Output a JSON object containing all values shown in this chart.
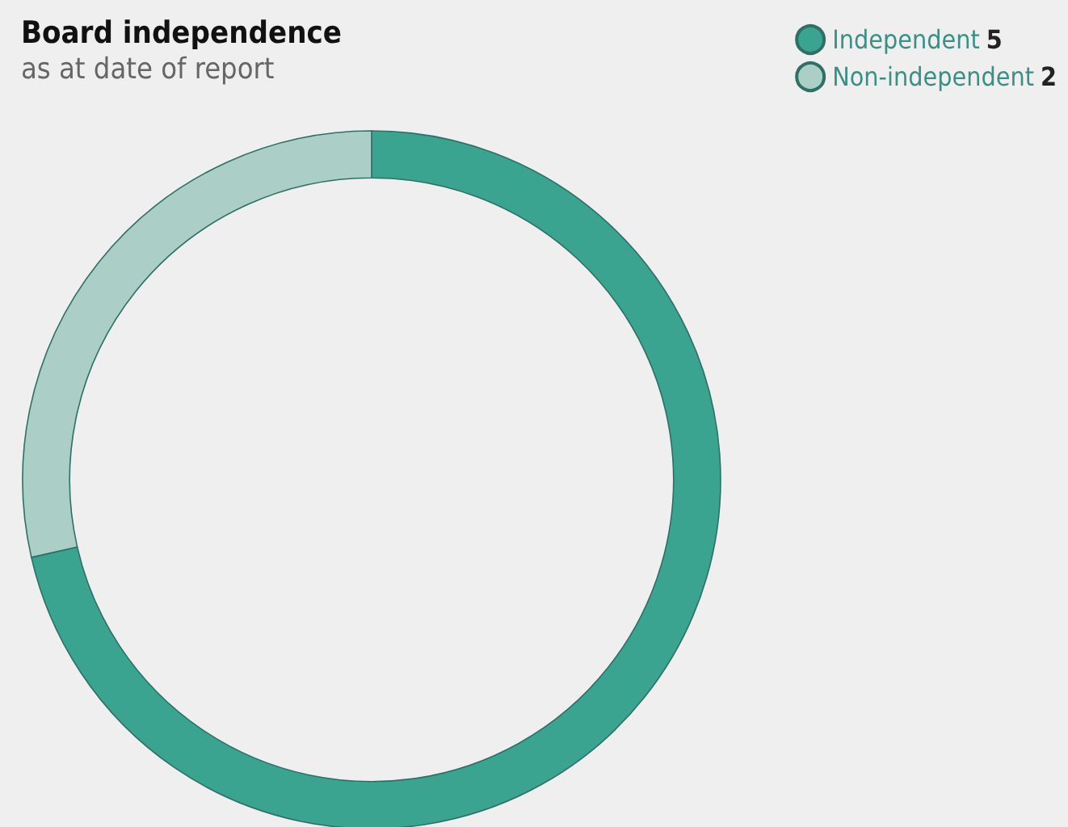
{
  "chart_data": {
    "type": "donut",
    "title": "Board independence",
    "subtitle": "as at date of report",
    "categories": [
      "Independent",
      "Non-independent"
    ],
    "values": [
      5,
      2
    ],
    "colors": [
      "#3aa491",
      "#abcfc6"
    ],
    "data_labels": true,
    "legend": "top right"
  }
}
